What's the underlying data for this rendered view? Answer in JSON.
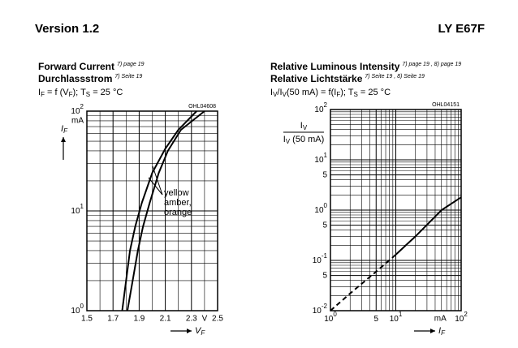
{
  "header": {
    "left": "Version 1.2",
    "right": "LY E67F"
  },
  "chart_data": [
    {
      "type": "line",
      "title_lines": [
        {
          "text": "Forward Current",
          "note": "7) page 19"
        },
        {
          "text": "Durchlassstrom",
          "note": "7) Seite 19"
        }
      ],
      "formula": [
        "I",
        "F",
        " = f (V",
        "F",
        "); T",
        "S",
        " = 25 °C"
      ],
      "code": "OHL04608",
      "ylabel": [
        "I",
        "F"
      ],
      "y_unit": "mA",
      "xlabel": [
        "V",
        "F"
      ],
      "x_unit": "V",
      "annotation": [
        "yellow",
        "amber,",
        "orange"
      ],
      "xlog": false,
      "ylog": true,
      "xlim": [
        1.5,
        2.5
      ],
      "ylim": [
        1,
        100
      ],
      "xticks": [
        1.5,
        1.7,
        1.9,
        2.1,
        2.3,
        2.5
      ],
      "yticks": [
        {
          "value": 1,
          "label": "10",
          "exp": "0"
        },
        {
          "value": 10,
          "label": "10",
          "exp": "1"
        },
        {
          "value": 100,
          "label": "10",
          "exp": "2"
        }
      ],
      "minor_xgrid": [
        1.6,
        1.8,
        2.0,
        2.2,
        2.4
      ],
      "minor_ygrid": [
        2,
        3,
        4,
        5,
        6,
        7,
        8,
        9,
        20,
        30,
        40,
        50,
        60,
        70,
        80,
        90
      ],
      "grid": true,
      "color": "#000000",
      "series": [
        {
          "x": [
            1.77,
            1.8,
            1.83,
            1.87,
            1.92,
            2.0,
            2.1,
            2.2,
            2.34
          ],
          "values": [
            1,
            2,
            4,
            7,
            12,
            24,
            42,
            65,
            100
          ],
          "style": "solid"
        },
        {
          "x": [
            1.81,
            1.85,
            1.89,
            1.93,
            1.98,
            2.05,
            2.12,
            2.22,
            2.4
          ],
          "values": [
            1,
            2,
            4,
            7,
            12,
            24,
            40,
            65,
            100
          ],
          "style": "solid"
        }
      ]
    },
    {
      "type": "line",
      "title_lines": [
        {
          "text": "Relative Luminous Intensity",
          "note": "7) page 19 , 8) page 19"
        },
        {
          "text": "Relative Lichtstärke",
          "note": "7) Seite 19 , 8) Seite 19"
        }
      ],
      "formula": [
        "I",
        "V",
        "/I",
        "V",
        "(50 mA) = f(I",
        "F",
        "); T",
        "S",
        " = 25 °C"
      ],
      "code": "OHL04151",
      "ylabel": {
        "numerator": [
          "I",
          "V"
        ],
        "denominator": [
          "I",
          "V",
          " (50 mA)"
        ]
      },
      "xlabel": [
        "I",
        "F"
      ],
      "x_unit": "mA",
      "xlog": true,
      "ylog": true,
      "xlim": [
        1,
        100
      ],
      "ylim": [
        0.01,
        100
      ],
      "xticks": [
        {
          "value": 1,
          "label": "10",
          "exp": "0"
        },
        {
          "value": 5,
          "label": "5"
        },
        {
          "value": 10,
          "label": "10",
          "exp": "1"
        },
        {
          "value": 100,
          "label": "10",
          "exp": "2"
        }
      ],
      "yticks": [
        {
          "value": 0.01,
          "label": "10",
          "exp": "-2"
        },
        {
          "value": 0.05,
          "label": "5"
        },
        {
          "value": 0.1,
          "label": "10",
          "exp": "-1"
        },
        {
          "value": 0.5,
          "label": "5"
        },
        {
          "value": 1,
          "label": "10",
          "exp": "0"
        },
        {
          "value": 5,
          "label": "5"
        },
        {
          "value": 10,
          "label": "10",
          "exp": "1"
        },
        {
          "value": 100,
          "label": "10",
          "exp": "2"
        }
      ],
      "minor_xgrid": [
        2,
        3,
        4,
        6,
        7,
        8,
        9,
        20,
        30,
        40,
        50,
        60,
        70,
        80,
        90
      ],
      "minor_ygrid": [
        0.02,
        0.03,
        0.04,
        0.06,
        0.07,
        0.08,
        0.09,
        0.2,
        0.3,
        0.4,
        0.6,
        0.7,
        0.8,
        0.9,
        2,
        3,
        4,
        6,
        7,
        8,
        9,
        20,
        30,
        40,
        50,
        60,
        70,
        80,
        90
      ],
      "grid": true,
      "color": "#000000",
      "series": [
        {
          "x": [
            1,
            2,
            5,
            10
          ],
          "values": [
            0.01,
            0.022,
            0.06,
            0.13
          ],
          "style": "dashed"
        },
        {
          "x": [
            10,
            20,
            50,
            100
          ],
          "values": [
            0.13,
            0.3,
            1,
            1.8
          ],
          "style": "solid"
        }
      ]
    }
  ]
}
